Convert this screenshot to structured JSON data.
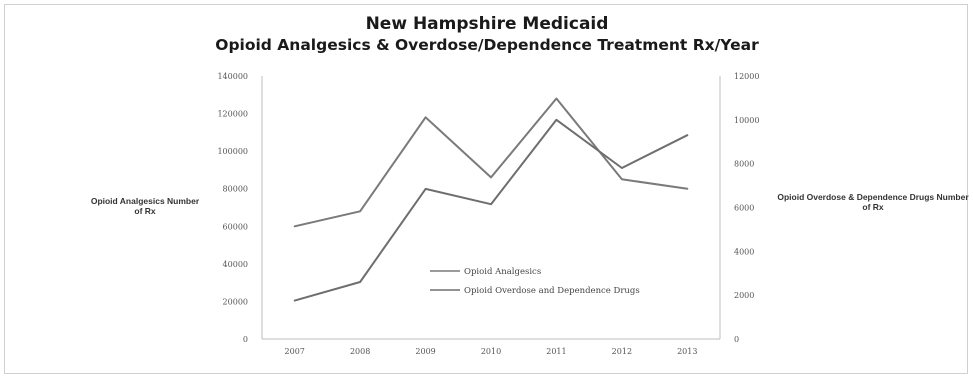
{
  "chart_data": {
    "type": "line",
    "title_line1": "New Hampshire Medicaid",
    "title_line2": "Opioid Analgesics & Overdose/Dependence Treatment Rx/Year",
    "categories": [
      "2007",
      "2008",
      "2009",
      "2010",
      "2011",
      "2012",
      "2013"
    ],
    "ylabel_left": "Opioid Analgesics Number of Rx",
    "ylabel_right": "Opioid Overdose & Dependence Drugs Number of Rx",
    "ylim_left": [
      0,
      140000
    ],
    "ylim_right": [
      0,
      12000
    ],
    "yticks_left": [
      "0",
      "20000",
      "40000",
      "60000",
      "80000",
      "100000",
      "120000",
      "140000"
    ],
    "yticks_right": [
      "0",
      "2000",
      "4000",
      "6000",
      "8000",
      "10000",
      "12000"
    ],
    "grid": false,
    "legend_position": "center-right",
    "series": [
      {
        "name": "Opioid Analgesics",
        "axis": "left",
        "values": [
          60000,
          68000,
          118000,
          86000,
          128000,
          85000,
          80000
        ],
        "color": "#7a7a7a"
      },
      {
        "name": "Opioid Overdose and Dependence Drugs",
        "axis": "right",
        "values": [
          1750,
          2600,
          6850,
          6150,
          10000,
          7800,
          9300
        ],
        "color": "#6e6e6e"
      }
    ]
  }
}
